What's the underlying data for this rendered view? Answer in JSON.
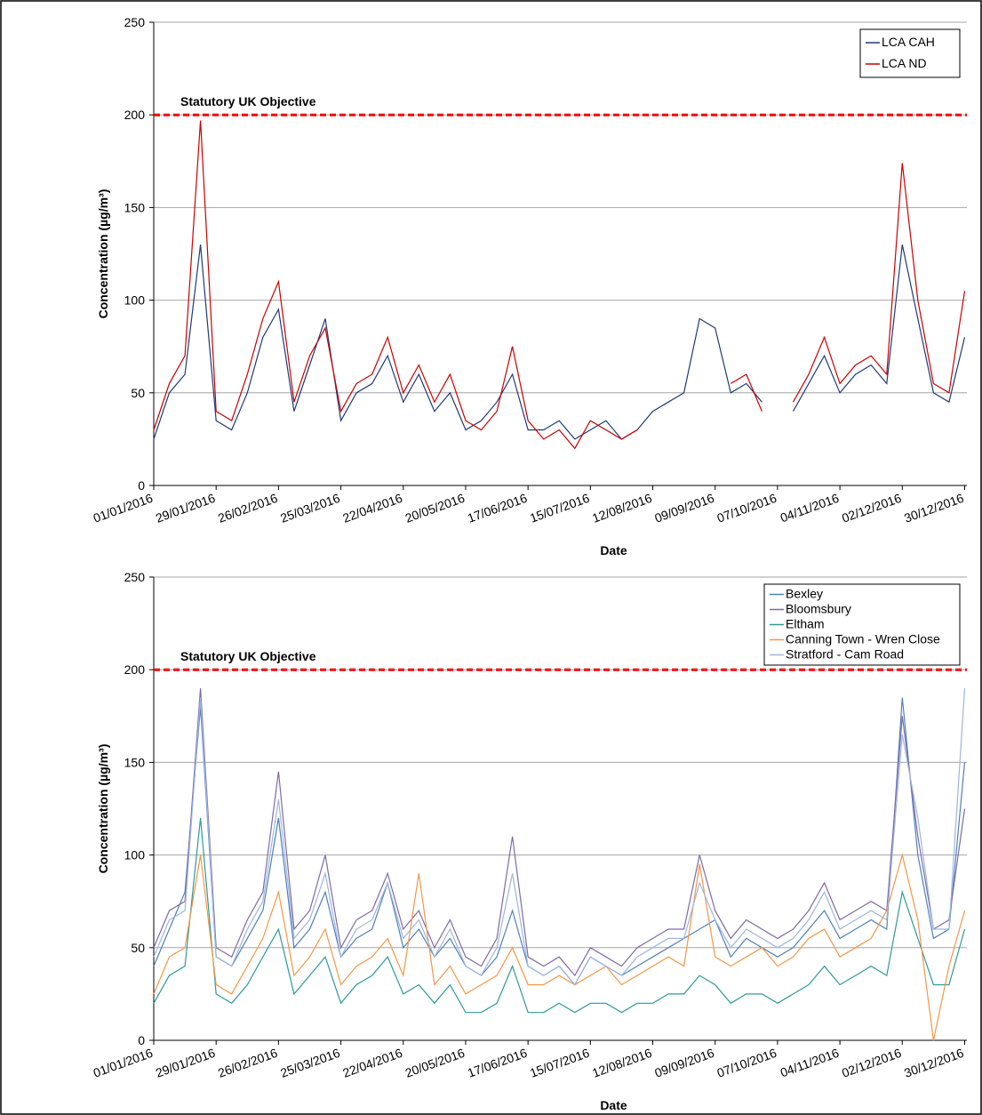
{
  "chart_data": [
    {
      "type": "line",
      "y_label": "Concentration (µg/m³)",
      "x_label": "Date",
      "ylim": [
        0,
        250
      ],
      "yticks": [
        0,
        50,
        100,
        150,
        200,
        250
      ],
      "grid": true,
      "xlim": [
        "01/01/2016",
        "31/12/2016"
      ],
      "xticks": [
        "01/01/2016",
        "29/01/2016",
        "26/02/2016",
        "25/03/2016",
        "22/04/2016",
        "20/05/2016",
        "17/06/2016",
        "15/07/2016",
        "12/08/2016",
        "09/09/2016",
        "07/10/2016",
        "04/11/2016",
        "02/12/2016",
        "30/12/2016"
      ],
      "legend": "upper right",
      "reference_line": {
        "label": "Statutory UK Objective",
        "value": 200,
        "color": "#ff0000"
      },
      "x": [
        "01/01/2016",
        "08/01/2016",
        "15/01/2016",
        "22/01/2016",
        "29/01/2016",
        "05/02/2016",
        "12/02/2016",
        "19/02/2016",
        "26/02/2016",
        "04/03/2016",
        "11/03/2016",
        "18/03/2016",
        "25/03/2016",
        "01/04/2016",
        "08/04/2016",
        "15/04/2016",
        "22/04/2016",
        "29/04/2016",
        "06/05/2016",
        "13/05/2016",
        "20/05/2016",
        "27/05/2016",
        "03/06/2016",
        "10/06/2016",
        "17/06/2016",
        "24/06/2016",
        "01/07/2016",
        "08/07/2016",
        "15/07/2016",
        "22/07/2016",
        "29/07/2016",
        "05/08/2016",
        "12/08/2016",
        "19/08/2016",
        "26/08/2016",
        "02/09/2016",
        "09/09/2016",
        "16/09/2016",
        "23/09/2016",
        "30/09/2016",
        "07/10/2016",
        "14/10/2016",
        "21/10/2016",
        "28/10/2016",
        "04/11/2016",
        "11/11/2016",
        "18/11/2016",
        "25/11/2016",
        "02/12/2016",
        "09/12/2016",
        "16/12/2016",
        "23/12/2016",
        "30/12/2016"
      ],
      "series": [
        {
          "name": "LCA CAH",
          "color": "#1f3a7a",
          "values": [
            25,
            50,
            60,
            130,
            35,
            30,
            50,
            80,
            95,
            40,
            65,
            90,
            35,
            50,
            55,
            70,
            45,
            60,
            40,
            50,
            30,
            35,
            45,
            60,
            30,
            30,
            35,
            25,
            30,
            35,
            25,
            30,
            40,
            45,
            50,
            90,
            85,
            50,
            55,
            45,
            null,
            40,
            55,
            70,
            50,
            60,
            65,
            55,
            130,
            90,
            50,
            45,
            80
          ]
        },
        {
          "name": "LCA ND",
          "color": "#cc0000",
          "values": [
            30,
            55,
            70,
            197,
            40,
            35,
            60,
            90,
            110,
            45,
            70,
            85,
            40,
            55,
            60,
            80,
            50,
            65,
            45,
            60,
            35,
            30,
            40,
            75,
            35,
            25,
            30,
            20,
            35,
            30,
            25,
            30,
            null,
            null,
            null,
            null,
            null,
            55,
            60,
            40,
            null,
            45,
            60,
            80,
            55,
            65,
            70,
            60,
            174,
            100,
            55,
            50,
            105
          ]
        }
      ]
    },
    {
      "type": "line",
      "y_label": "Concentration (µg/m³)",
      "x_label": "Date",
      "ylim": [
        0,
        250
      ],
      "yticks": [
        0,
        50,
        100,
        150,
        200,
        250
      ],
      "grid": true,
      "xlim": [
        "01/01/2016",
        "31/12/2016"
      ],
      "xticks": [
        "01/01/2016",
        "29/01/2016",
        "26/02/2016",
        "25/03/2016",
        "22/04/2016",
        "20/05/2016",
        "17/06/2016",
        "15/07/2016",
        "12/08/2016",
        "09/09/2016",
        "07/10/2016",
        "04/11/2016",
        "02/12/2016",
        "30/12/2016"
      ],
      "legend": "upper right",
      "reference_line": {
        "label": "Statutory UK Objective",
        "value": 200,
        "color": "#ff0000"
      },
      "x": [
        "01/01/2016",
        "08/01/2016",
        "15/01/2016",
        "22/01/2016",
        "29/01/2016",
        "05/02/2016",
        "12/02/2016",
        "19/02/2016",
        "26/02/2016",
        "04/03/2016",
        "11/03/2016",
        "18/03/2016",
        "25/03/2016",
        "01/04/2016",
        "08/04/2016",
        "15/04/2016",
        "22/04/2016",
        "29/04/2016",
        "06/05/2016",
        "13/05/2016",
        "20/05/2016",
        "27/05/2016",
        "03/06/2016",
        "10/06/2016",
        "17/06/2016",
        "24/06/2016",
        "01/07/2016",
        "08/07/2016",
        "15/07/2016",
        "22/07/2016",
        "29/07/2016",
        "05/08/2016",
        "12/08/2016",
        "19/08/2016",
        "26/08/2016",
        "02/09/2016",
        "09/09/2016",
        "16/09/2016",
        "23/09/2016",
        "30/09/2016",
        "07/10/2016",
        "14/10/2016",
        "21/10/2016",
        "28/10/2016",
        "04/11/2016",
        "11/11/2016",
        "18/11/2016",
        "25/11/2016",
        "02/12/2016",
        "09/12/2016",
        "16/12/2016",
        "23/12/2016",
        "30/12/2016"
      ],
      "series": [
        {
          "name": "Bexley",
          "color": "#4f81bd",
          "values": [
            40,
            60,
            80,
            180,
            45,
            40,
            55,
            70,
            120,
            50,
            60,
            80,
            45,
            55,
            60,
            85,
            50,
            60,
            45,
            55,
            40,
            35,
            45,
            70,
            40,
            35,
            40,
            30,
            45,
            40,
            35,
            40,
            45,
            50,
            55,
            60,
            65,
            45,
            55,
            50,
            45,
            50,
            60,
            70,
            55,
            60,
            65,
            60,
            185,
            100,
            55,
            60,
            150
          ]
        },
        {
          "name": "Bloomsbury",
          "color": "#7f6aa8",
          "values": [
            50,
            70,
            75,
            190,
            50,
            45,
            65,
            80,
            145,
            60,
            70,
            100,
            50,
            65,
            70,
            90,
            60,
            70,
            50,
            65,
            45,
            40,
            55,
            110,
            45,
            40,
            45,
            35,
            50,
            45,
            40,
            50,
            55,
            60,
            60,
            100,
            70,
            55,
            65,
            60,
            55,
            60,
            70,
            85,
            65,
            70,
            75,
            70,
            175,
            110,
            60,
            65,
            125
          ]
        },
        {
          "name": "Eltham",
          "color": "#2e9a9a",
          "values": [
            20,
            35,
            40,
            120,
            25,
            20,
            30,
            45,
            60,
            25,
            35,
            45,
            20,
            30,
            35,
            45,
            25,
            30,
            20,
            30,
            15,
            15,
            20,
            40,
            15,
            15,
            20,
            15,
            20,
            20,
            15,
            20,
            20,
            25,
            25,
            35,
            30,
            20,
            25,
            25,
            20,
            25,
            30,
            40,
            30,
            35,
            40,
            35,
            80,
            55,
            30,
            30,
            60
          ]
        },
        {
          "name": "Canning Town - Wren Close",
          "color": "#f79646",
          "values": [
            25,
            45,
            50,
            100,
            30,
            25,
            40,
            55,
            80,
            35,
            45,
            60,
            30,
            40,
            45,
            55,
            35,
            90,
            30,
            40,
            25,
            30,
            35,
            50,
            30,
            30,
            35,
            30,
            35,
            40,
            30,
            35,
            40,
            45,
            40,
            95,
            45,
            40,
            45,
            50,
            40,
            45,
            55,
            60,
            45,
            50,
            55,
            70,
            100,
            65,
            0,
            40,
            70
          ]
        },
        {
          "name": "Stratford - Cam Road",
          "color": "#9db6e0",
          "values": [
            45,
            65,
            70,
            185,
            45,
            40,
            60,
            75,
            130,
            55,
            65,
            90,
            45,
            60,
            65,
            85,
            55,
            65,
            45,
            60,
            40,
            35,
            50,
            90,
            40,
            35,
            40,
            30,
            45,
            40,
            35,
            45,
            50,
            55,
            55,
            85,
            65,
            50,
            60,
            55,
            50,
            55,
            65,
            80,
            60,
            65,
            70,
            65,
            165,
            120,
            60,
            60,
            190
          ]
        }
      ]
    }
  ]
}
